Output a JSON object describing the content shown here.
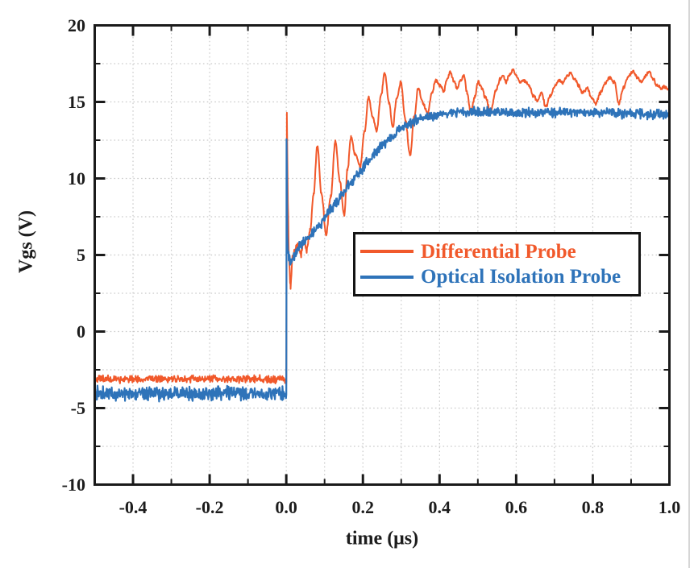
{
  "figure": {
    "background": "#ffffff",
    "page_edge_color": "#d6d6d6"
  },
  "chart_data": {
    "type": "line",
    "title": "",
    "xlabel": "time (μs)",
    "ylabel": "Vgs (V)",
    "xlim": [
      -0.5,
      1.0
    ],
    "ylim": [
      -10,
      20
    ],
    "axis_color": "#1a1a1a",
    "text_color": "#1c1c1c",
    "xticks": {
      "major": [
        -0.4,
        -0.2,
        0.0,
        0.2,
        0.4,
        0.6,
        0.8,
        1.0
      ],
      "labels": [
        "-0.4",
        "-0.2",
        "0.0",
        "0.2",
        "0.4",
        "0.6",
        "0.8",
        "1.0"
      ]
    },
    "yticks": {
      "major": [
        -10,
        -5,
        0,
        5,
        10,
        15,
        20
      ],
      "labels": [
        "-10",
        "-5",
        "0",
        "5",
        "10",
        "15",
        "20"
      ]
    },
    "grid": {
      "show": true,
      "style": "dotted",
      "color": "#c9c9c9",
      "x_step": 0.1,
      "y_step": 2.5
    },
    "legend": {
      "position": "inside-middle-right",
      "border_color": "#141414",
      "background": "#ffffff",
      "entries": [
        "Differential Probe",
        "Optical Isolation Probe"
      ]
    },
    "series": [
      {
        "name": "Differential Probe",
        "color": "#F1592B",
        "stroke_width": 2,
        "noise": [
          {
            "until": 0.0,
            "amp": 0.3
          },
          {
            "until": 0.06,
            "amp": 0.3
          },
          {
            "until": 2.0,
            "amp": 0.14
          }
        ],
        "points": [
          [
            -0.5,
            -3.1
          ],
          [
            -0.25,
            -3.1
          ],
          [
            -0.01,
            -3.1
          ],
          [
            0.0,
            -3.1
          ],
          [
            0.0015,
            14.2
          ],
          [
            0.004,
            8.5
          ],
          [
            0.007,
            4.8
          ],
          [
            0.011,
            2.9
          ],
          [
            0.016,
            4.8
          ],
          [
            0.022,
            5.4
          ],
          [
            0.03,
            5.7
          ],
          [
            0.038,
            5.0
          ],
          [
            0.046,
            5.9
          ],
          [
            0.054,
            5.3
          ],
          [
            0.062,
            6.6
          ],
          [
            0.071,
            8.9
          ],
          [
            0.081,
            12.1
          ],
          [
            0.092,
            9.0
          ],
          [
            0.104,
            6.3
          ],
          [
            0.116,
            8.8
          ],
          [
            0.128,
            12.4
          ],
          [
            0.14,
            9.8
          ],
          [
            0.151,
            7.6
          ],
          [
            0.16,
            10.6
          ],
          [
            0.169,
            12.7
          ],
          [
            0.18,
            11.6
          ],
          [
            0.193,
            10.8
          ],
          [
            0.204,
            13.0
          ],
          [
            0.215,
            15.3
          ],
          [
            0.226,
            14.0
          ],
          [
            0.236,
            13.1
          ],
          [
            0.247,
            15.4
          ],
          [
            0.257,
            16.9
          ],
          [
            0.268,
            14.9
          ],
          [
            0.278,
            13.4
          ],
          [
            0.288,
            15.2
          ],
          [
            0.299,
            16.3
          ],
          [
            0.311,
            13.8
          ],
          [
            0.323,
            11.5
          ],
          [
            0.334,
            14.0
          ],
          [
            0.344,
            15.9
          ],
          [
            0.357,
            14.9
          ],
          [
            0.369,
            14.2
          ],
          [
            0.38,
            15.6
          ],
          [
            0.39,
            16.4
          ],
          [
            0.4,
            16.1
          ],
          [
            0.411,
            15.7
          ],
          [
            0.42,
            16.5
          ],
          [
            0.428,
            17.0
          ],
          [
            0.437,
            16.4
          ],
          [
            0.446,
            15.9
          ],
          [
            0.455,
            16.4
          ],
          [
            0.464,
            16.7
          ],
          [
            0.472,
            15.6
          ],
          [
            0.481,
            14.3
          ],
          [
            0.492,
            15.3
          ],
          [
            0.5,
            16.3
          ],
          [
            0.51,
            15.9
          ],
          [
            0.52,
            15.3
          ],
          [
            0.533,
            14.4
          ],
          [
            0.548,
            15.8
          ],
          [
            0.558,
            16.5
          ],
          [
            0.566,
            16.7
          ],
          [
            0.574,
            16.3
          ],
          [
            0.583,
            16.8
          ],
          [
            0.592,
            17.1
          ],
          [
            0.601,
            16.7
          ],
          [
            0.61,
            16.3
          ],
          [
            0.62,
            16.4
          ],
          [
            0.633,
            16.1
          ],
          [
            0.645,
            15.4
          ],
          [
            0.655,
            15.1
          ],
          [
            0.666,
            15.6
          ],
          [
            0.677,
            14.7
          ],
          [
            0.69,
            15.4
          ],
          [
            0.702,
            16.1
          ],
          [
            0.713,
            16.4
          ],
          [
            0.722,
            16.2
          ],
          [
            0.733,
            16.7
          ],
          [
            0.743,
            16.9
          ],
          [
            0.753,
            16.5
          ],
          [
            0.763,
            16.1
          ],
          [
            0.773,
            15.6
          ],
          [
            0.785,
            15.9
          ],
          [
            0.797,
            15.3
          ],
          [
            0.808,
            14.9
          ],
          [
            0.82,
            15.6
          ],
          [
            0.832,
            16.2
          ],
          [
            0.845,
            16.6
          ],
          [
            0.856,
            16.3
          ],
          [
            0.868,
            14.9
          ],
          [
            0.88,
            15.9
          ],
          [
            0.892,
            16.6
          ],
          [
            0.905,
            17.0
          ],
          [
            0.917,
            16.6
          ],
          [
            0.928,
            16.3
          ],
          [
            0.938,
            16.7
          ],
          [
            0.947,
            17.0
          ],
          [
            0.957,
            16.5
          ],
          [
            0.968,
            16.1
          ],
          [
            0.978,
            15.9
          ],
          [
            0.988,
            16.0
          ],
          [
            1.0,
            15.8
          ]
        ]
      },
      {
        "name": "Optical Isolation Probe",
        "color": "#2E73B9",
        "stroke_width": 2.2,
        "noise": [
          {
            "until": 0.0,
            "amp": 0.55
          },
          {
            "until": 0.05,
            "amp": 0.42
          },
          {
            "until": 2.0,
            "amp": 0.38
          }
        ],
        "points": [
          [
            -0.5,
            -4.05
          ],
          [
            -0.25,
            -4.05
          ],
          [
            -0.01,
            -4.05
          ],
          [
            0.0,
            -4.1
          ],
          [
            0.0008,
            12.7
          ],
          [
            0.003,
            6.0
          ],
          [
            0.006,
            4.9
          ],
          [
            0.012,
            4.4
          ],
          [
            0.018,
            4.7
          ],
          [
            0.025,
            5.1
          ],
          [
            0.035,
            5.5
          ],
          [
            0.045,
            5.8
          ],
          [
            0.055,
            6.1
          ],
          [
            0.07,
            6.5
          ],
          [
            0.085,
            6.9
          ],
          [
            0.1,
            7.4
          ],
          [
            0.115,
            8.0
          ],
          [
            0.13,
            8.5
          ],
          [
            0.15,
            9.1
          ],
          [
            0.17,
            9.8
          ],
          [
            0.19,
            10.4
          ],
          [
            0.21,
            11.0
          ],
          [
            0.23,
            11.6
          ],
          [
            0.25,
            12.1
          ],
          [
            0.27,
            12.6
          ],
          [
            0.295,
            13.2
          ],
          [
            0.32,
            13.6
          ],
          [
            0.35,
            13.9
          ],
          [
            0.38,
            14.1
          ],
          [
            0.42,
            14.25
          ],
          [
            0.46,
            14.35
          ],
          [
            0.5,
            14.35
          ],
          [
            0.55,
            14.35
          ],
          [
            0.6,
            14.3
          ],
          [
            0.65,
            14.3
          ],
          [
            0.7,
            14.3
          ],
          [
            0.75,
            14.3
          ],
          [
            0.8,
            14.3
          ],
          [
            0.85,
            14.25
          ],
          [
            0.9,
            14.25
          ],
          [
            0.95,
            14.2
          ],
          [
            1.0,
            14.2
          ]
        ]
      }
    ]
  }
}
